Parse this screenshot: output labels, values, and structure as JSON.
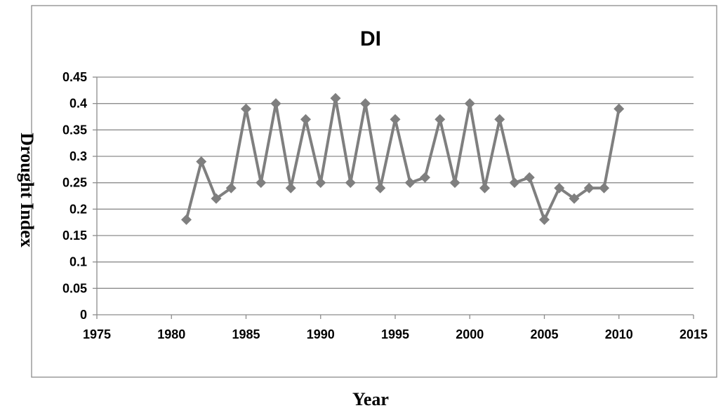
{
  "chart_data": {
    "type": "scatter",
    "title": "DI",
    "xlabel": "Year",
    "ylabel": "Drought Index",
    "xlim": [
      1975,
      2015
    ],
    "ylim": [
      0,
      0.45
    ],
    "x_ticks": [
      "1975",
      "1980",
      "1985",
      "1990",
      "1995",
      "2000",
      "2005",
      "2010",
      "2015"
    ],
    "y_ticks": [
      "0",
      "0.05",
      "0.1",
      "0.15",
      "0.2",
      "0.25",
      "0.3",
      "0.35",
      "0.4",
      "0.45"
    ],
    "grid": "horizontal",
    "lines": true,
    "marker": "diamond",
    "series": [
      {
        "x": [
          1981,
          1982,
          1983,
          1984,
          1985,
          1986,
          1987,
          1988,
          1989,
          1990,
          1991,
          1992,
          1993,
          1994,
          1995,
          1996,
          1997,
          1998,
          1999,
          2000,
          2001,
          2002,
          2003,
          2004,
          2005,
          2006,
          2007,
          2008,
          2009,
          2010
        ],
        "y": [
          0.18,
          0.29,
          0.22,
          0.24,
          0.39,
          0.25,
          0.4,
          0.24,
          0.37,
          0.25,
          0.41,
          0.25,
          0.4,
          0.24,
          0.37,
          0.25,
          0.26,
          0.37,
          0.25,
          0.4,
          0.24,
          0.37,
          0.25,
          0.26,
          0.18,
          0.24,
          0.22,
          0.24,
          0.24,
          0.39
        ]
      }
    ],
    "colors": {
      "series": "#7f7f7f",
      "grid": "#8c8c8c",
      "axis": "#8c8c8c",
      "border": "#8c8c8c"
    }
  }
}
